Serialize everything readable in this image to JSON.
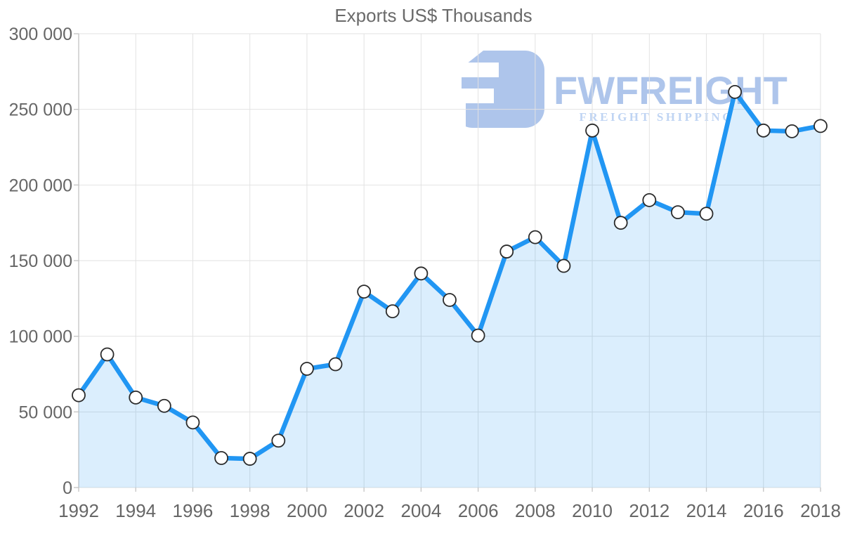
{
  "page": {
    "background": "#ffffff"
  },
  "chart_data": {
    "type": "area",
    "title": "Exports US$ Thousands",
    "series_name": "Exports US$ Thousands",
    "xlabel": "",
    "ylabel": "",
    "x": [
      1992,
      1993,
      1994,
      1995,
      1996,
      1997,
      1998,
      1999,
      2000,
      2001,
      2002,
      2003,
      2004,
      2005,
      2006,
      2007,
      2008,
      2009,
      2010,
      2011,
      2012,
      2013,
      2014,
      2015,
      2016,
      2017,
      2018
    ],
    "values": [
      61000,
      88000,
      59500,
      54000,
      43000,
      19500,
      19000,
      31000,
      78500,
      81500,
      129500,
      116500,
      141500,
      124000,
      100500,
      156000,
      165500,
      146500,
      236000,
      175000,
      190000,
      182000,
      181000,
      261500,
      236000,
      235500,
      239000
    ],
    "ylim": [
      0,
      300000
    ],
    "y_ticks": [
      0,
      50000,
      100000,
      150000,
      200000,
      250000,
      300000
    ],
    "y_tick_labels": [
      "0",
      "50 000",
      "100 000",
      "150 000",
      "200 000",
      "250 000",
      "300 000"
    ],
    "x_ticks": [
      1992,
      1994,
      1996,
      1998,
      2000,
      2002,
      2004,
      2006,
      2008,
      2010,
      2012,
      2014,
      2016,
      2018
    ],
    "x_tick_labels": [
      "1992",
      "1994",
      "1996",
      "1998",
      "2000",
      "2002",
      "2004",
      "2006",
      "2008",
      "2010",
      "2012",
      "2014",
      "2016",
      "2018"
    ],
    "grid": true,
    "legend": "none",
    "markers": "circle"
  },
  "watermark": {
    "brand": "FWFREIGHT",
    "tagline": "FREIGHT SHIPPING"
  },
  "colors": {
    "line": "#2196f3",
    "fill": "rgba(33,150,243,0.16)",
    "marker_fill": "#ffffff",
    "marker_stroke": "#2b2b2b",
    "grid": "#e2e2e2",
    "axis": "#c4c4c4",
    "tick_text": "#666666",
    "title_text": "#6a6a6a",
    "logo_blue": "#a3bee9",
    "logo_tagline_blue": "#b7cff2"
  }
}
